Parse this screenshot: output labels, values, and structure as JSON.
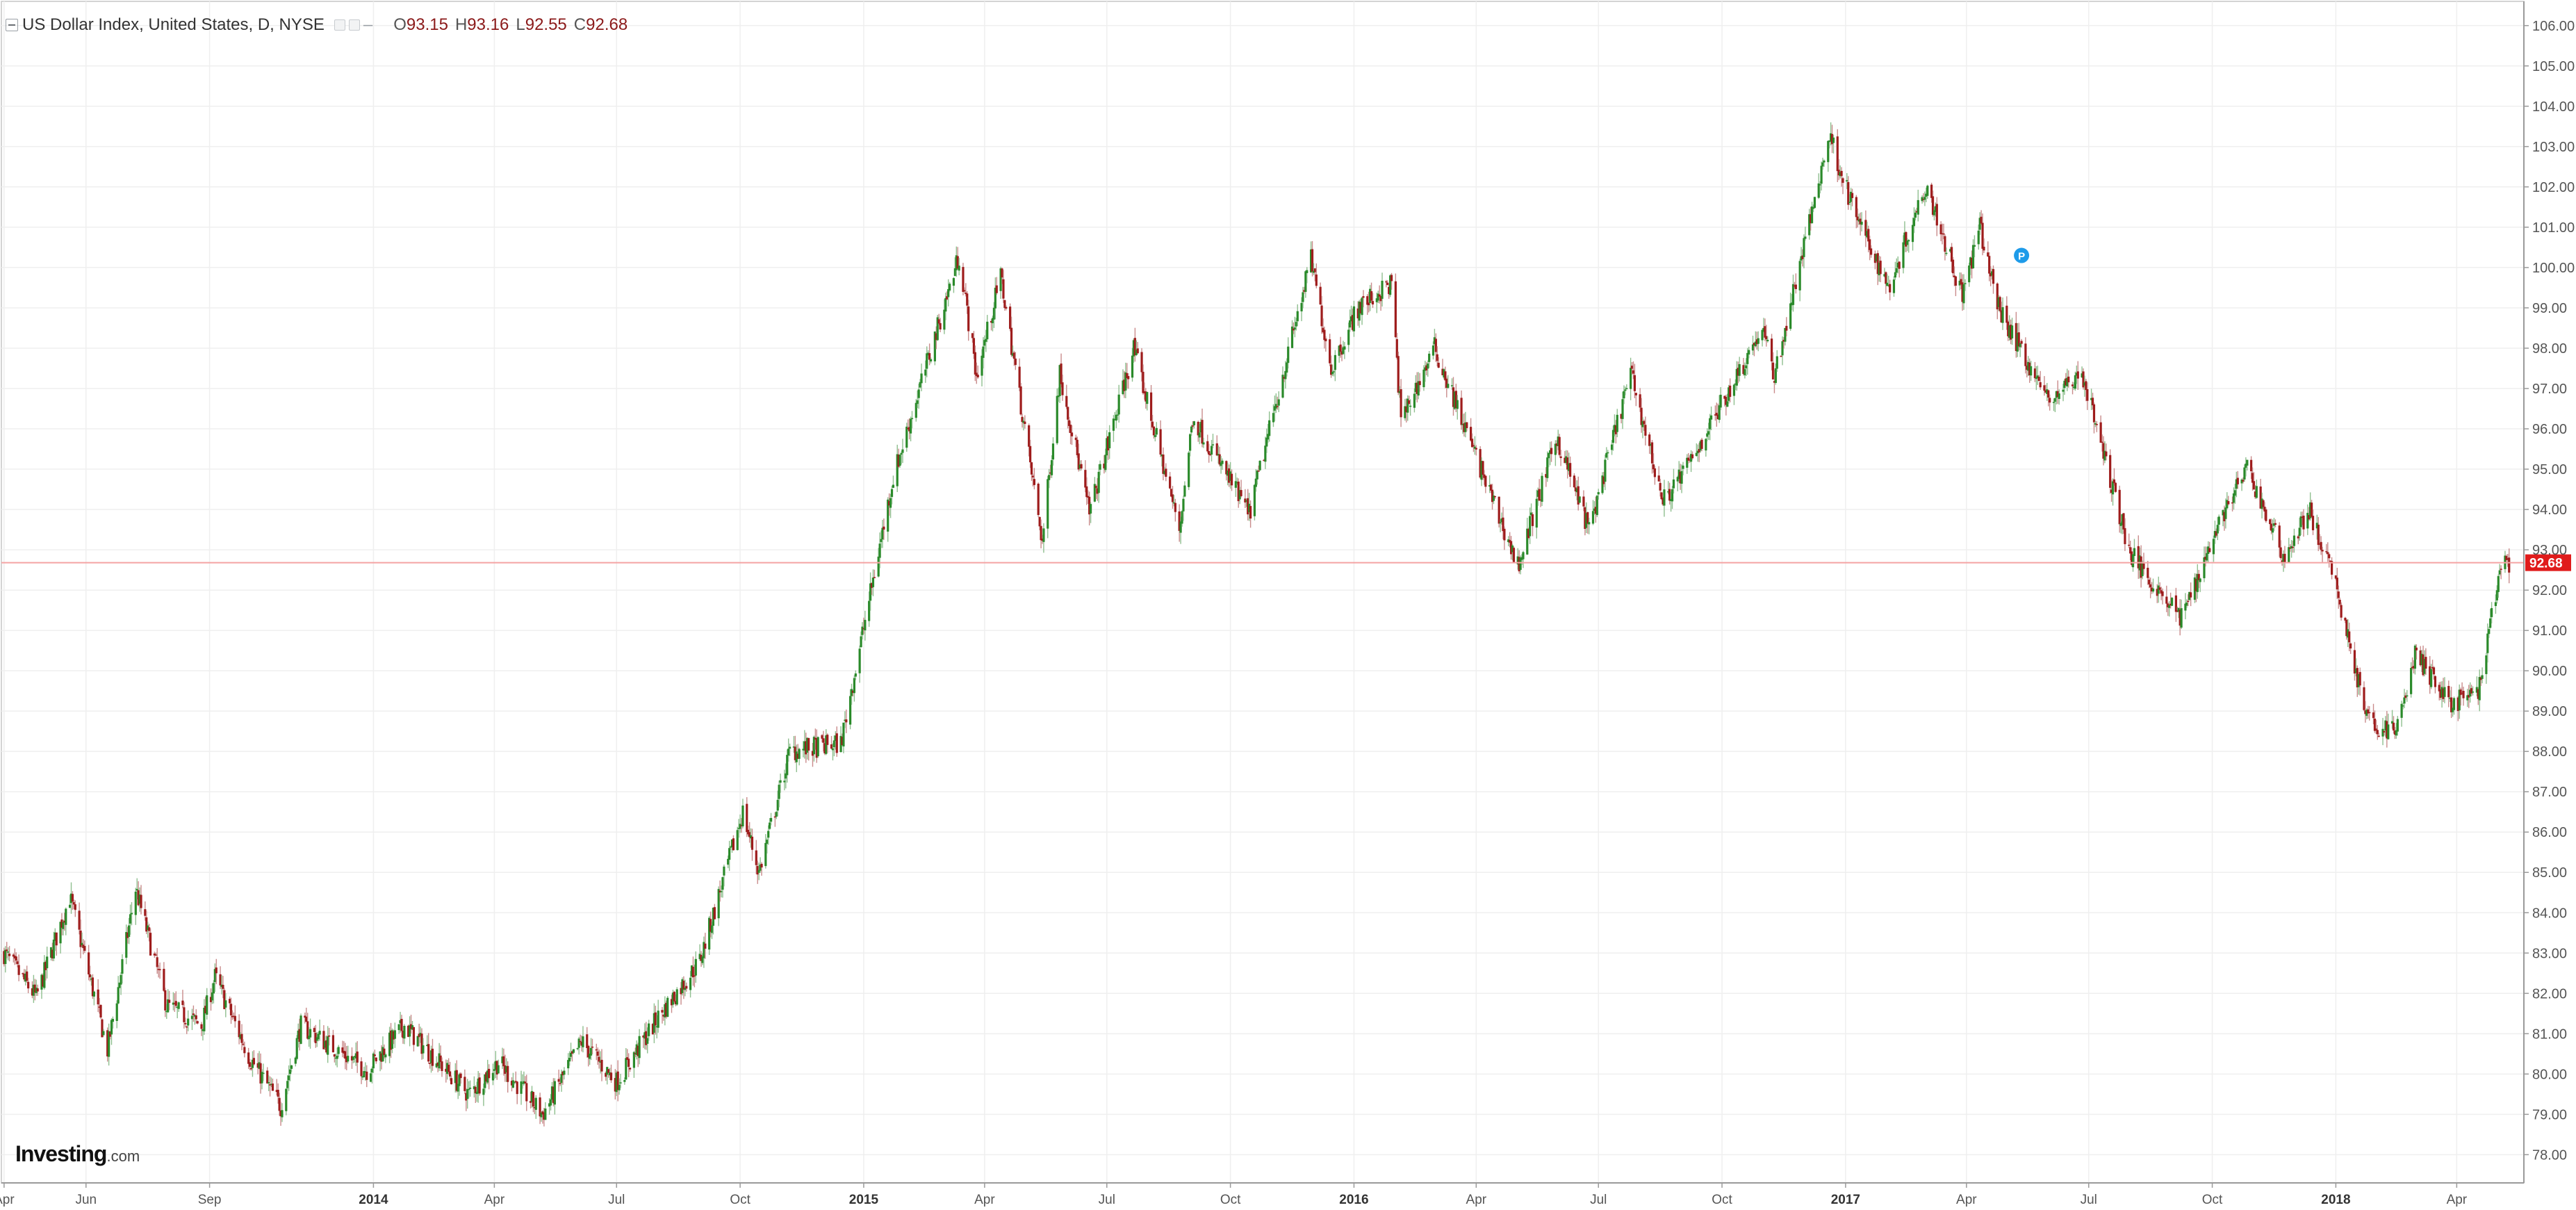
{
  "header": {
    "title": "US Dollar Index, United States, D, NYSE",
    "dash": "–",
    "open_label": "O",
    "open": "93.15",
    "high_label": "H",
    "high": "93.16",
    "low_label": "L",
    "low": "92.55",
    "close_label": "C",
    "close": "92.68"
  },
  "logo": {
    "main": "Investing",
    "suffix": ".com"
  },
  "chart_data": {
    "type": "candlestick",
    "grid": true,
    "legend": "none",
    "ylim": [
      77.3,
      106.6
    ],
    "y_ticks": [
      "78.00",
      "79.00",
      "80.00",
      "81.00",
      "82.00",
      "83.00",
      "84.00",
      "85.00",
      "86.00",
      "87.00",
      "88.00",
      "89.00",
      "90.00",
      "91.00",
      "92.00",
      "93.00",
      "94.00",
      "95.00",
      "96.00",
      "97.00",
      "98.00",
      "99.00",
      "100.00",
      "101.00",
      "102.00",
      "103.00",
      "104.00",
      "105.00",
      "106.00"
    ],
    "x_ticks": [
      {
        "label": "Apr",
        "month": "2013-04",
        "bold": false
      },
      {
        "label": "Jun",
        "month": "2013-06",
        "bold": false
      },
      {
        "label": "Sep",
        "month": "2013-09",
        "bold": false
      },
      {
        "label": "2014",
        "month": "2014-01",
        "bold": true
      },
      {
        "label": "Apr",
        "month": "2014-04",
        "bold": false
      },
      {
        "label": "Jul",
        "month": "2014-07",
        "bold": false
      },
      {
        "label": "Oct",
        "month": "2014-10",
        "bold": false
      },
      {
        "label": "2015",
        "month": "2015-01",
        "bold": true
      },
      {
        "label": "Apr",
        "month": "2015-04",
        "bold": false
      },
      {
        "label": "Jul",
        "month": "2015-07",
        "bold": false
      },
      {
        "label": "Oct",
        "month": "2015-10",
        "bold": false
      },
      {
        "label": "2016",
        "month": "2016-01",
        "bold": true
      },
      {
        "label": "Apr",
        "month": "2016-04",
        "bold": false
      },
      {
        "label": "Jul",
        "month": "2016-07",
        "bold": false
      },
      {
        "label": "Oct",
        "month": "2016-10",
        "bold": false
      },
      {
        "label": "2017",
        "month": "2017-01",
        "bold": true
      },
      {
        "label": "Apr",
        "month": "2017-04",
        "bold": false
      },
      {
        "label": "Jul",
        "month": "2017-07",
        "bold": false
      },
      {
        "label": "Oct",
        "month": "2017-10",
        "bold": false
      },
      {
        "label": "2018",
        "month": "2018-01",
        "bold": true
      },
      {
        "label": "Apr",
        "month": "2018-04",
        "bold": false
      }
    ],
    "price_path": [
      {
        "date": "2013-04-01",
        "value": 83.0
      },
      {
        "date": "2013-04-25",
        "value": 81.9
      },
      {
        "date": "2013-05-20",
        "value": 84.4
      },
      {
        "date": "2013-06-17",
        "value": 80.6
      },
      {
        "date": "2013-07-08",
        "value": 84.6
      },
      {
        "date": "2013-07-31",
        "value": 81.7
      },
      {
        "date": "2013-08-26",
        "value": 81.2
      },
      {
        "date": "2013-09-05",
        "value": 82.4
      },
      {
        "date": "2013-10-01",
        "value": 80.4
      },
      {
        "date": "2013-10-24",
        "value": 79.2
      },
      {
        "date": "2013-11-08",
        "value": 81.2
      },
      {
        "date": "2013-12-27",
        "value": 80.1
      },
      {
        "date": "2014-01-24",
        "value": 81.2
      },
      {
        "date": "2014-03-13",
        "value": 79.5
      },
      {
        "date": "2014-04-04",
        "value": 80.3
      },
      {
        "date": "2014-05-07",
        "value": 79.0
      },
      {
        "date": "2014-06-05",
        "value": 80.8
      },
      {
        "date": "2014-07-01",
        "value": 79.8
      },
      {
        "date": "2014-08-01",
        "value": 81.4
      },
      {
        "date": "2014-09-01",
        "value": 82.8
      },
      {
        "date": "2014-10-03",
        "value": 86.5
      },
      {
        "date": "2014-10-15",
        "value": 85.0
      },
      {
        "date": "2014-11-07",
        "value": 88.0
      },
      {
        "date": "2014-12-15",
        "value": 88.2
      },
      {
        "date": "2015-01-23",
        "value": 94.8
      },
      {
        "date": "2015-03-13",
        "value": 100.3
      },
      {
        "date": "2015-03-26",
        "value": 97.3
      },
      {
        "date": "2015-04-13",
        "value": 99.8
      },
      {
        "date": "2015-05-14",
        "value": 93.2
      },
      {
        "date": "2015-05-27",
        "value": 97.4
      },
      {
        "date": "2015-06-18",
        "value": 93.9
      },
      {
        "date": "2015-07-21",
        "value": 98.0
      },
      {
        "date": "2015-08-24",
        "value": 93.5
      },
      {
        "date": "2015-09-03",
        "value": 96.3
      },
      {
        "date": "2015-10-15",
        "value": 93.9
      },
      {
        "date": "2015-11-30",
        "value": 100.2
      },
      {
        "date": "2015-12-15",
        "value": 97.5
      },
      {
        "date": "2016-01-04",
        "value": 99.0
      },
      {
        "date": "2016-01-29",
        "value": 99.6
      },
      {
        "date": "2016-02-05",
        "value": 96.2
      },
      {
        "date": "2016-03-01",
        "value": 98.0
      },
      {
        "date": "2016-05-02",
        "value": 92.6
      },
      {
        "date": "2016-05-31",
        "value": 95.8
      },
      {
        "date": "2016-06-24",
        "value": 93.5
      },
      {
        "date": "2016-07-25",
        "value": 97.4
      },
      {
        "date": "2016-08-18",
        "value": 94.2
      },
      {
        "date": "2016-09-06",
        "value": 95.1
      },
      {
        "date": "2016-10-31",
        "value": 98.5
      },
      {
        "date": "2016-11-09",
        "value": 97.3
      },
      {
        "date": "2016-12-20",
        "value": 103.3
      },
      {
        "date": "2017-01-06",
        "value": 101.5
      },
      {
        "date": "2017-02-02",
        "value": 99.5
      },
      {
        "date": "2017-03-02",
        "value": 102.1
      },
      {
        "date": "2017-03-29",
        "value": 99.3
      },
      {
        "date": "2017-04-11",
        "value": 101.0
      },
      {
        "date": "2017-04-25",
        "value": 99.0
      },
      {
        "date": "2017-06-01",
        "value": 96.7
      },
      {
        "date": "2017-06-26",
        "value": 97.4
      },
      {
        "date": "2017-08-01",
        "value": 92.9
      },
      {
        "date": "2017-09-08",
        "value": 91.3
      },
      {
        "date": "2017-10-06",
        "value": 93.7
      },
      {
        "date": "2017-10-27",
        "value": 95.0
      },
      {
        "date": "2017-11-24",
        "value": 92.8
      },
      {
        "date": "2017-12-12",
        "value": 94.0
      },
      {
        "date": "2018-01-02",
        "value": 92.0
      },
      {
        "date": "2018-01-25",
        "value": 88.7
      },
      {
        "date": "2018-02-15",
        "value": 88.5
      },
      {
        "date": "2018-03-01",
        "value": 90.4
      },
      {
        "date": "2018-03-28",
        "value": 89.2
      },
      {
        "date": "2018-04-17",
        "value": 89.4
      },
      {
        "date": "2018-05-03",
        "value": 92.5
      },
      {
        "date": "2018-05-10",
        "value": 92.68
      }
    ],
    "last_price": 92.68,
    "last_price_label": "92.68",
    "marker": {
      "date": "2017-05-12",
      "value": 100.3,
      "label": "P"
    },
    "colors": {
      "up": "#2a8a2a",
      "down": "#9e1c1c",
      "last_line": "#f4a3a3",
      "last_label_bg": "#e01b1b",
      "marker": "#1e9be9",
      "grid": "#efefef"
    }
  }
}
